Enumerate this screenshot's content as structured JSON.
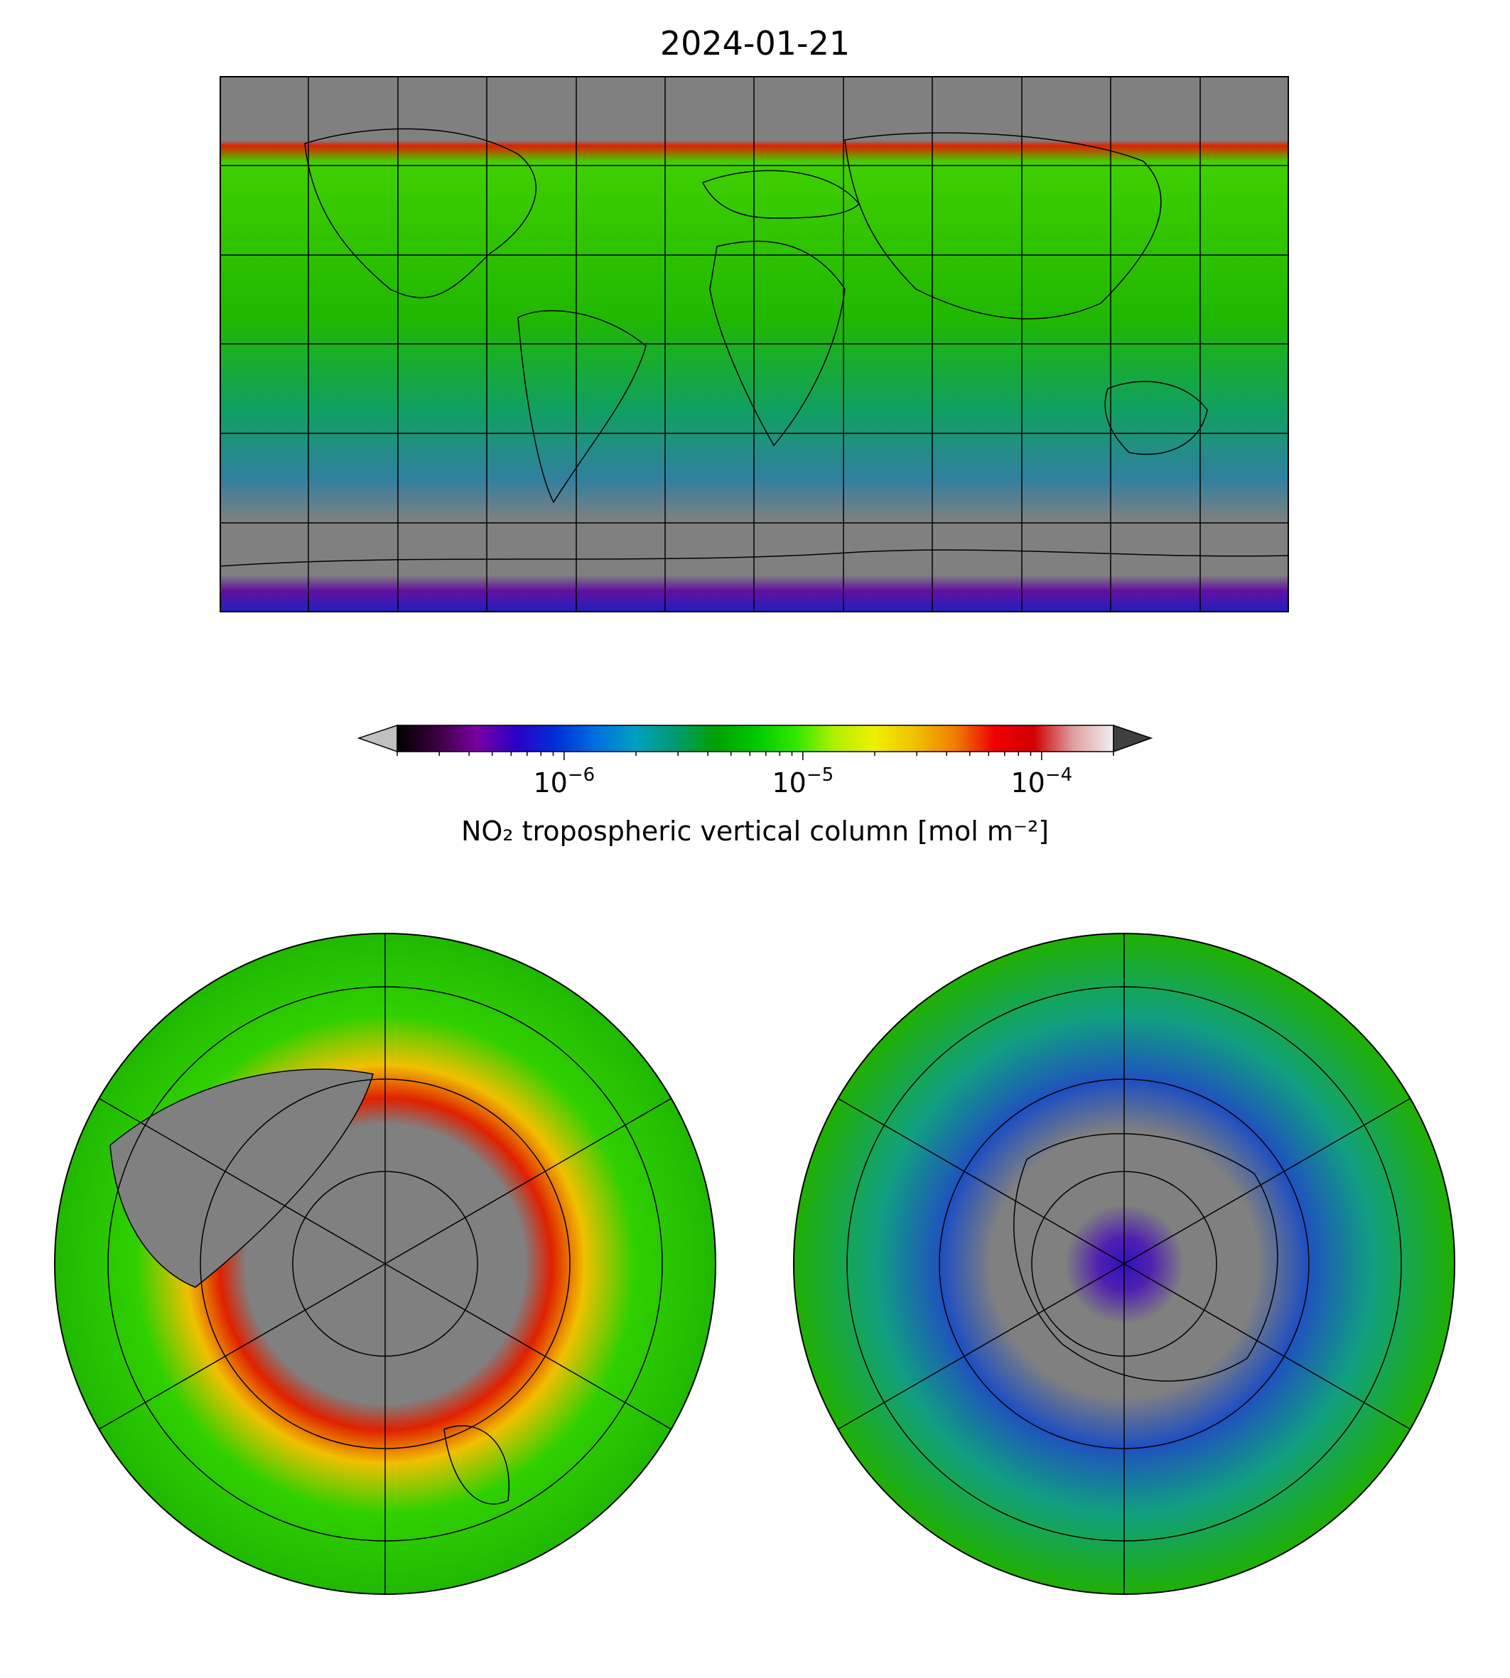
{
  "title": "2024-01-21",
  "colorbar": {
    "label": "NO₂ tropospheric vertical column [mol m⁻²]",
    "scale": "log",
    "range": [
      2e-07,
      0.0002
    ],
    "ticks": [
      {
        "value": 1e-06,
        "base": "10",
        "exp": "−6"
      },
      {
        "value": 1e-05,
        "base": "10",
        "exp": "−5"
      },
      {
        "value": 0.0001,
        "base": "10",
        "exp": "−4"
      }
    ],
    "under_color": "#c0c0c0",
    "over_color": "#404040",
    "colormap": [
      "#000000",
      "#3a003f",
      "#7a00a0",
      "#2a00c8",
      "#0030d8",
      "#0070e0",
      "#00a0c0",
      "#009a70",
      "#00a000",
      "#00c800",
      "#30e800",
      "#b0f000",
      "#f0f000",
      "#f0c000",
      "#f08000",
      "#f00000",
      "#d00000",
      "#e0a0a0",
      "#f0f0f0"
    ]
  },
  "maps": {
    "world": {
      "projection": "plate-carree",
      "no_data_color": "#808080"
    },
    "north": {
      "projection": "north-polar-stereographic"
    },
    "south": {
      "projection": "south-polar-stereographic"
    }
  }
}
